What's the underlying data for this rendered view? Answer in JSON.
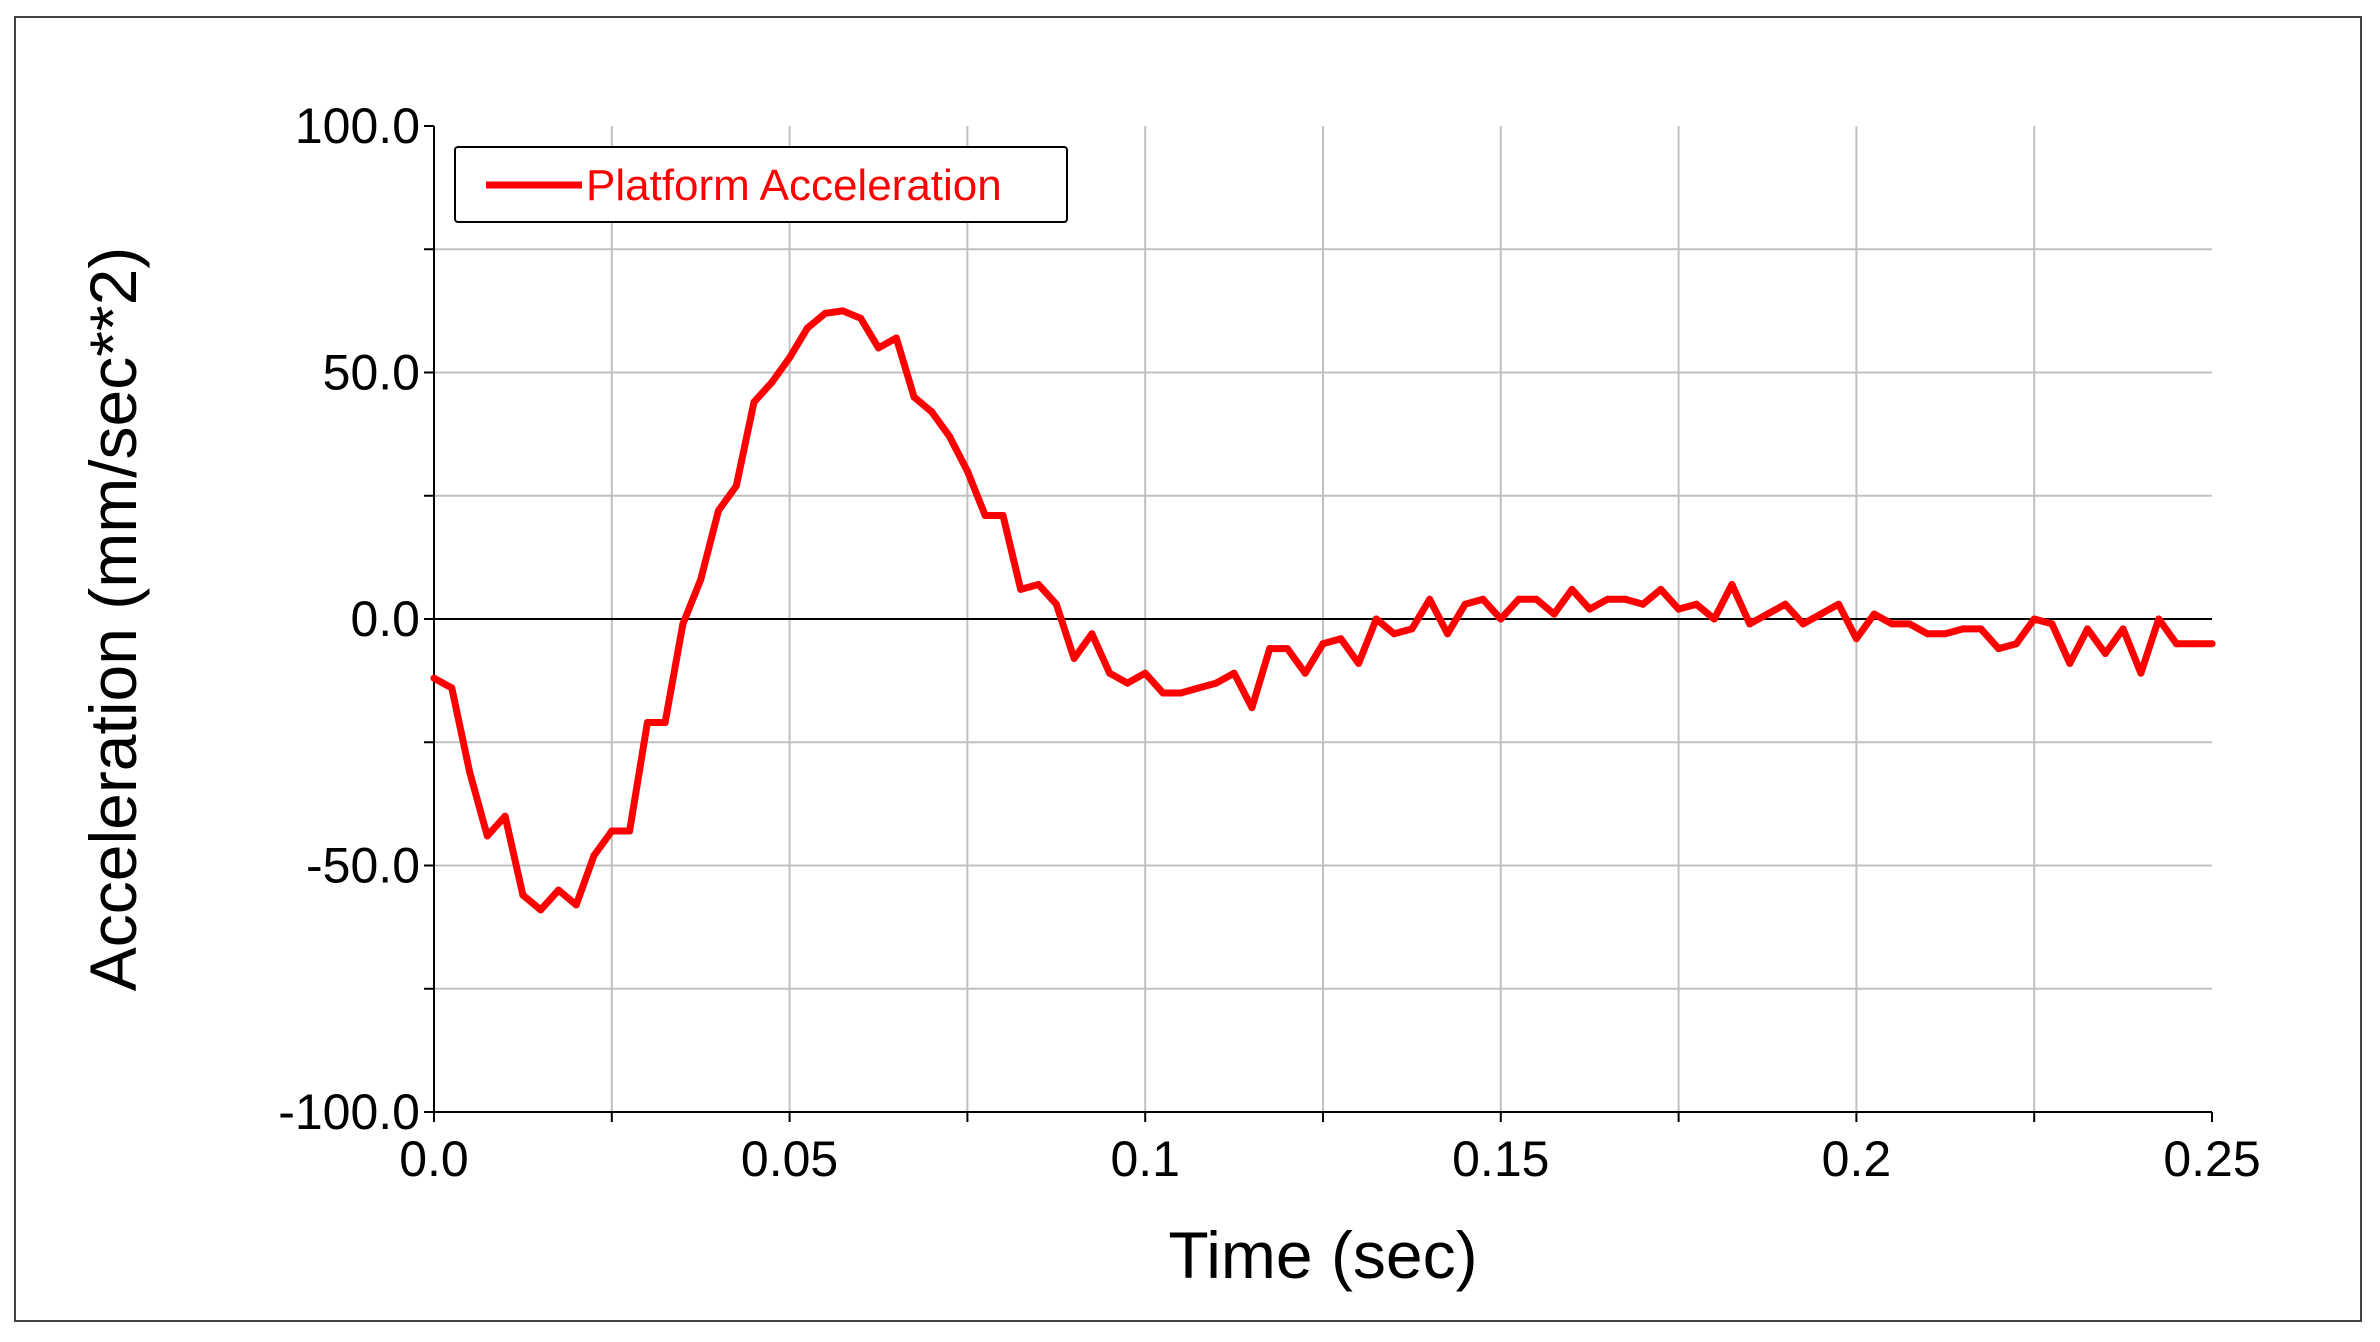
{
  "chart_data": {
    "type": "line",
    "title": "",
    "xlabel": "Time (sec)",
    "ylabel": "Acceleration (mm/sec**2)",
    "xlim": [
      0,
      0.25
    ],
    "ylim": [
      -100,
      100
    ],
    "x_tick_labels": [
      "0.0",
      "0.05",
      "0.1",
      "0.15",
      "0.2",
      "0.25"
    ],
    "y_tick_labels": [
      "100.0",
      "50.0",
      "0.0",
      "-50.0",
      "-100.0"
    ],
    "grid": true,
    "zero_line": true,
    "legend_position": "top-left",
    "colors": {
      "series": "#ff0000",
      "grid": "#c0c0c0",
      "axis": "#000000"
    },
    "series": [
      {
        "name": "Platform Acceleration",
        "points": [
          [
            0.0,
            -12
          ],
          [
            0.0025,
            -14
          ],
          [
            0.005,
            -31
          ],
          [
            0.0075,
            -44
          ],
          [
            0.01,
            -40
          ],
          [
            0.0125,
            -56
          ],
          [
            0.015,
            -59
          ],
          [
            0.0175,
            -55
          ],
          [
            0.02,
            -58
          ],
          [
            0.0225,
            -48
          ],
          [
            0.025,
            -43
          ],
          [
            0.0275,
            -43
          ],
          [
            0.03,
            -21
          ],
          [
            0.0325,
            -21
          ],
          [
            0.035,
            -1
          ],
          [
            0.0375,
            8
          ],
          [
            0.04,
            22
          ],
          [
            0.0425,
            27
          ],
          [
            0.045,
            44
          ],
          [
            0.0475,
            48
          ],
          [
            0.05,
            53
          ],
          [
            0.0525,
            59
          ],
          [
            0.055,
            62
          ],
          [
            0.0575,
            62.5
          ],
          [
            0.06,
            61
          ],
          [
            0.0625,
            55
          ],
          [
            0.065,
            57
          ],
          [
            0.0675,
            45
          ],
          [
            0.07,
            42
          ],
          [
            0.0725,
            37
          ],
          [
            0.075,
            30
          ],
          [
            0.0775,
            21
          ],
          [
            0.08,
            21
          ],
          [
            0.0825,
            6
          ],
          [
            0.085,
            7
          ],
          [
            0.0875,
            3
          ],
          [
            0.09,
            -8
          ],
          [
            0.0925,
            -3
          ],
          [
            0.095,
            -11
          ],
          [
            0.0975,
            -13
          ],
          [
            0.1,
            -11
          ],
          [
            0.1025,
            -15
          ],
          [
            0.105,
            -15
          ],
          [
            0.1075,
            -14
          ],
          [
            0.11,
            -13
          ],
          [
            0.1125,
            -11
          ],
          [
            0.115,
            -18
          ],
          [
            0.1175,
            -6
          ],
          [
            0.12,
            -6
          ],
          [
            0.1225,
            -11
          ],
          [
            0.125,
            -5
          ],
          [
            0.1275,
            -4
          ],
          [
            0.13,
            -9
          ],
          [
            0.1325,
            0
          ],
          [
            0.135,
            -3
          ],
          [
            0.1375,
            -2
          ],
          [
            0.14,
            4
          ],
          [
            0.1425,
            -3
          ],
          [
            0.145,
            3
          ],
          [
            0.1475,
            4
          ],
          [
            0.15,
            0
          ],
          [
            0.1525,
            4
          ],
          [
            0.155,
            4
          ],
          [
            0.1575,
            1
          ],
          [
            0.16,
            6
          ],
          [
            0.1625,
            2
          ],
          [
            0.165,
            4
          ],
          [
            0.1675,
            4
          ],
          [
            0.17,
            3
          ],
          [
            0.1725,
            6
          ],
          [
            0.175,
            2
          ],
          [
            0.1775,
            3
          ],
          [
            0.18,
            0
          ],
          [
            0.1825,
            7
          ],
          [
            0.185,
            -1
          ],
          [
            0.1875,
            1
          ],
          [
            0.19,
            3
          ],
          [
            0.1925,
            -1
          ],
          [
            0.195,
            1
          ],
          [
            0.1975,
            3
          ],
          [
            0.2,
            -4
          ],
          [
            0.2025,
            1
          ],
          [
            0.205,
            -1
          ],
          [
            0.2075,
            -1
          ],
          [
            0.21,
            -3
          ],
          [
            0.2125,
            -3
          ],
          [
            0.215,
            -2
          ],
          [
            0.2175,
            -2
          ],
          [
            0.22,
            -6
          ],
          [
            0.2225,
            -5
          ],
          [
            0.225,
            0
          ],
          [
            0.2275,
            -1
          ],
          [
            0.23,
            -9
          ],
          [
            0.2325,
            -2
          ],
          [
            0.235,
            -7
          ],
          [
            0.2375,
            -2
          ],
          [
            0.24,
            -11
          ],
          [
            0.2425,
            0
          ],
          [
            0.245,
            -5
          ],
          [
            0.2475,
            -5
          ],
          [
            0.25,
            -5
          ]
        ]
      }
    ]
  }
}
